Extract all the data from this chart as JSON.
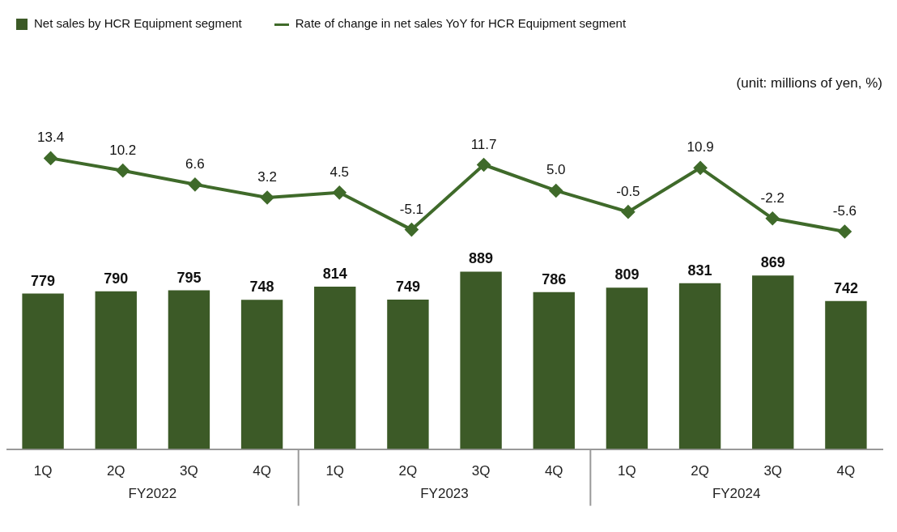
{
  "chart_data": [
    {
      "type": "bar",
      "categories": [
        "1Q",
        "2Q",
        "3Q",
        "4Q",
        "1Q",
        "2Q",
        "3Q",
        "4Q",
        "1Q",
        "2Q",
        "3Q",
        "4Q"
      ],
      "series": [
        {
          "name": "Net sales by HCR Equipment segment",
          "type": "bar",
          "color": "#3c5a27",
          "values": [
            779,
            790,
            795,
            748,
            814,
            749,
            889,
            786,
            809,
            831,
            869,
            742
          ]
        }
      ],
      "annotations": [
        "FY2022",
        "FY2023",
        "FY2024"
      ],
      "data_labels": true,
      "grid": false,
      "legend": "top left",
      "tick_labels": "x"
    },
    {
      "type": "line",
      "subtitle": "(unit: millions of yen, %)",
      "categories": [
        null,
        null,
        null,
        null,
        null,
        null,
        null,
        null,
        null,
        null,
        null,
        null
      ],
      "series": [
        {
          "name": "Rate of change in net sales YoY for HCR Equipment segment",
          "type": "line",
          "color": "#3f6a2a",
          "values": [
            13.4,
            10.2,
            6.6,
            3.2,
            4.5,
            -5.1,
            11.7,
            5.0,
            -0.5,
            10.9,
            -2.2,
            -5.6
          ],
          "value_labels": [
            "13.4",
            "10.2",
            "6.6",
            "3.2",
            "4.5",
            "-5.1",
            "11.7",
            "5.0",
            "-0.5",
            "10.9",
            "-2.2",
            "-5.6"
          ]
        }
      ],
      "grid": false,
      "legend": "top",
      "tick_labels": false,
      "marker": "diamond",
      "line_style": "solid"
    }
  ]
}
